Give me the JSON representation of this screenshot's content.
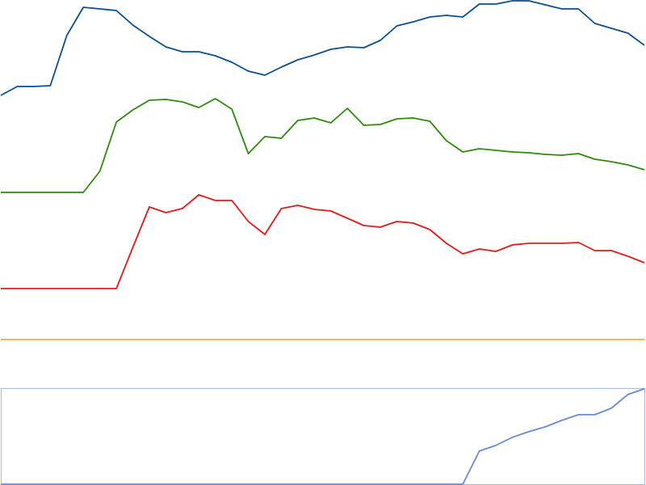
{
  "chart_data": {
    "type": "line",
    "title": "",
    "xlabel": "",
    "ylabel": "",
    "grid": false,
    "legend": "none",
    "x": [
      0,
      1,
      2,
      3,
      4,
      5,
      6,
      7,
      8,
      9,
      10,
      11,
      12,
      13,
      14,
      15,
      16,
      17,
      18,
      19,
      20,
      21,
      22,
      23,
      24,
      25,
      26,
      27,
      28,
      29,
      30,
      31,
      32,
      33,
      34,
      35,
      36,
      37,
      38,
      39
    ],
    "series": [
      {
        "color": "#0a4f8f",
        "values": [
          118,
          107,
          107,
          106,
          44,
          9,
          11,
          13,
          31,
          45,
          58,
          64,
          64,
          69,
          77,
          88,
          93,
          83,
          74,
          68,
          61,
          58,
          59,
          50,
          32,
          27,
          21,
          19,
          21,
          5,
          5,
          1,
          1,
          6,
          11,
          11,
          29,
          35,
          41,
          56
        ],
        "ylim": [
          0,
          120
        ],
        "panel": [
          0,
          120
        ]
      },
      {
        "color": "#2f8a0f",
        "values": [
          238,
          238,
          238,
          238,
          238,
          238,
          212,
          151,
          136,
          124,
          123,
          126,
          133,
          122,
          135,
          190,
          169,
          171,
          149,
          146,
          152,
          134,
          155,
          154,
          147,
          146,
          150,
          174,
          188,
          184,
          186,
          188,
          189,
          191,
          192,
          190,
          197,
          200,
          204,
          210
        ],
        "ylim": [
          120,
          240
        ],
        "panel": [
          120,
          240
        ]
      },
      {
        "color": "#e41a1a",
        "values": [
          357,
          357,
          357,
          357,
          357,
          357,
          357,
          357,
          306,
          256,
          263,
          258,
          241,
          248,
          248,
          274,
          290,
          258,
          254,
          259,
          261,
          270,
          279,
          281,
          274,
          276,
          284,
          301,
          314,
          308,
          311,
          303,
          301,
          301,
          301,
          300,
          310,
          310,
          317,
          325
        ],
        "ylim": [
          240,
          360
        ],
        "panel": [
          240,
          360
        ]
      },
      {
        "color": "#f0a020",
        "values": [
          420,
          420,
          420,
          420,
          420,
          420,
          420,
          420,
          420,
          420,
          420,
          420,
          420,
          420,
          420,
          420,
          420,
          420,
          420,
          420,
          420,
          420,
          420,
          420,
          420,
          420,
          420,
          420,
          420,
          420,
          420,
          420,
          420,
          420,
          420,
          420,
          420,
          420,
          420,
          420
        ],
        "ylim": [
          360,
          480
        ],
        "panel": [
          360,
          480
        ]
      },
      {
        "color": "#6a8bd4",
        "values": [
          599,
          599,
          599,
          599,
          599,
          599,
          599,
          599,
          599,
          599,
          599,
          599,
          599,
          599,
          599,
          599,
          599,
          599,
          599,
          599,
          599,
          599,
          599,
          599,
          599,
          599,
          599,
          599,
          599,
          558,
          551,
          541,
          534,
          528,
          520,
          513,
          513,
          505,
          488,
          481
        ],
        "ylim": [
          480,
          600
        ],
        "panel": [
          480,
          600
        ]
      }
    ]
  }
}
